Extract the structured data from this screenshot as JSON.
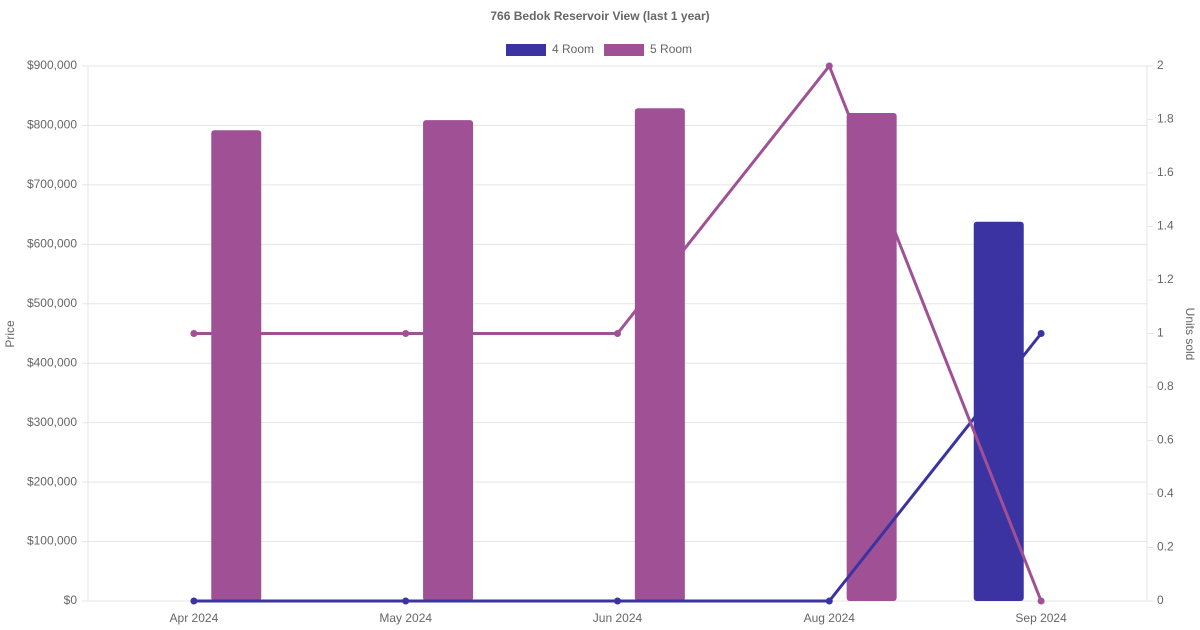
{
  "chart_data": {
    "type": "bar",
    "title": "766 Bedok Reservoir View (last 1 year)",
    "categories": [
      "Apr 2024",
      "May 2024",
      "Jun 2024",
      "Aug 2024",
      "Sep 2024"
    ],
    "series": [
      {
        "name": "4 Room",
        "color": "#3a33a1",
        "values": [
          null,
          null,
          null,
          null,
          638000
        ],
        "units_sold": [
          0,
          0,
          0,
          0,
          1
        ]
      },
      {
        "name": "5 Room",
        "color": "#a05195",
        "values": [
          792000,
          809000,
          829000,
          821000,
          null
        ],
        "units_sold": [
          1,
          1,
          1,
          2,
          0
        ]
      }
    ],
    "y_label": "Price",
    "y2_label": "Units sold",
    "ylim": [
      0,
      900000
    ],
    "yticks": [
      {
        "value": 0,
        "label": "$0"
      },
      {
        "value": 100000,
        "label": "$100,000"
      },
      {
        "value": 200000,
        "label": "$200,000"
      },
      {
        "value": 300000,
        "label": "$300,000"
      },
      {
        "value": 400000,
        "label": "$400,000"
      },
      {
        "value": 500000,
        "label": "$500,000"
      },
      {
        "value": 600000,
        "label": "$600,000"
      },
      {
        "value": 700000,
        "label": "$700,000"
      },
      {
        "value": 800000,
        "label": "$800,000"
      },
      {
        "value": 900000,
        "label": "$900,000"
      }
    ],
    "y2lim": [
      0,
      2
    ],
    "y2ticks": [
      0,
      0.2,
      0.4,
      0.6,
      0.8,
      1,
      1.2,
      1.4,
      1.6,
      1.8,
      2
    ],
    "grid": true,
    "legend": "top"
  }
}
